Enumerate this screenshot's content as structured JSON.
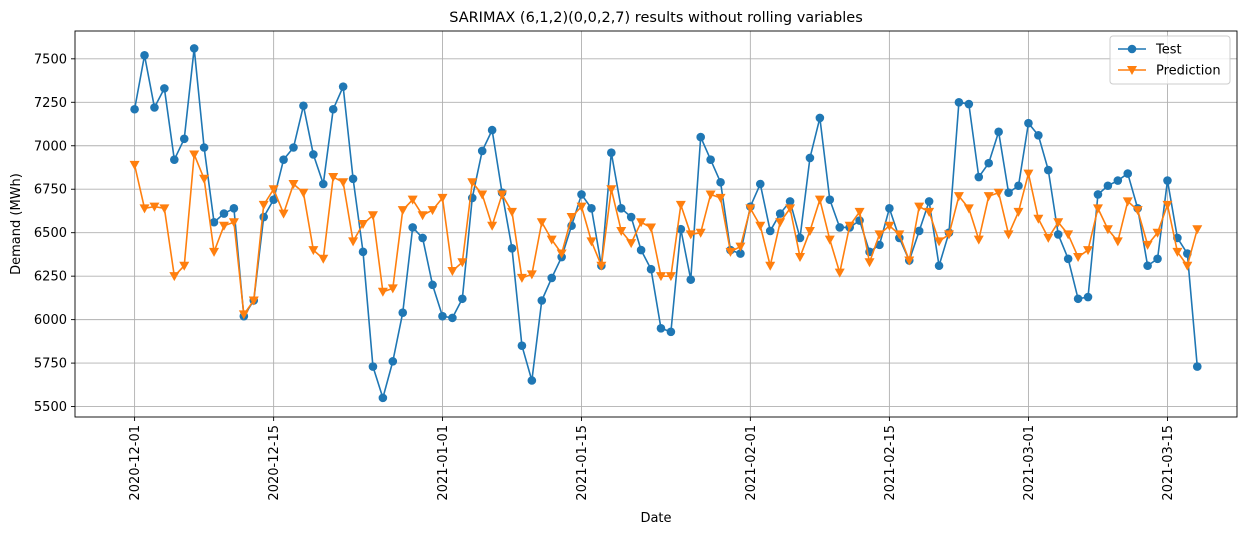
{
  "chart_data": {
    "type": "line",
    "title": "SARIMAX (6,1,2)(0,0,2,7) results without rolling variables",
    "xlabel": "Date",
    "ylabel": "Demand (MWh)",
    "ylim": [
      5440,
      7660
    ],
    "xlim": [
      "2020-11-25",
      "2021-03-22"
    ],
    "grid": true,
    "legend_position": "upper right",
    "x_start": "2020-12-01",
    "x_step_days": 1,
    "x_ticks": [
      "2020-12-01",
      "2020-12-15",
      "2021-01-01",
      "2021-01-15",
      "2021-02-01",
      "2021-02-15",
      "2021-03-01",
      "2021-03-15"
    ],
    "y_ticks": [
      5500,
      5750,
      6000,
      6250,
      6500,
      6750,
      7000,
      7250,
      7500
    ],
    "series": [
      {
        "name": "Test",
        "color": "#1f77b4",
        "marker": "circle",
        "values": [
          7210,
          7520,
          7220,
          7330,
          6920,
          7040,
          7560,
          6990,
          6560,
          6610,
          6640,
          6020,
          6110,
          6590,
          6690,
          6920,
          6990,
          7230,
          6950,
          6780,
          7210,
          7340,
          6810,
          6390,
          5730,
          5550,
          5760,
          6040,
          6530,
          6470,
          6200,
          6020,
          6010,
          6120,
          6700,
          6970,
          7090,
          6730,
          6410,
          5850,
          5650,
          6110,
          6240,
          6360,
          6540,
          6720,
          6640,
          6310,
          6960,
          6640,
          6590,
          6400,
          6290,
          5950,
          5930,
          6520,
          6230,
          7050,
          6920,
          6790,
          6400,
          6380,
          6650,
          6780,
          6510,
          6610,
          6680,
          6470,
          6930,
          7160,
          6690,
          6530,
          6530,
          6570,
          6390,
          6430,
          6640,
          6470,
          6340,
          6510,
          6680,
          6310,
          6500,
          7250,
          7240,
          6820,
          6900,
          7080,
          6730,
          6770,
          7130,
          7060,
          6860,
          6490,
          6350,
          6120,
          6130,
          6720,
          6770,
          6800,
          6840,
          6640,
          6310,
          6350,
          6800,
          6470,
          6380,
          5730
        ]
      },
      {
        "name": "Prediction",
        "color": "#ff7f0e",
        "marker": "triangle-down",
        "values": [
          6890,
          6640,
          6650,
          6640,
          6250,
          6310,
          6950,
          6810,
          6390,
          6540,
          6560,
          6030,
          6110,
          6660,
          6750,
          6610,
          6780,
          6730,
          6400,
          6350,
          6820,
          6790,
          6450,
          6550,
          6600,
          6160,
          6180,
          6630,
          6690,
          6600,
          6630,
          6700,
          6280,
          6330,
          6790,
          6720,
          6540,
          6720,
          6620,
          6240,
          6260,
          6560,
          6460,
          6380,
          6590,
          6650,
          6450,
          6310,
          6750,
          6510,
          6440,
          6560,
          6530,
          6250,
          6250,
          6660,
          6490,
          6500,
          6720,
          6700,
          6390,
          6420,
          6640,
          6540,
          6310,
          6560,
          6640,
          6360,
          6510,
          6690,
          6460,
          6270,
          6540,
          6620,
          6330,
          6490,
          6540,
          6490,
          6340,
          6650,
          6620,
          6450,
          6490,
          6710,
          6640,
          6460,
          6710,
          6730,
          6490,
          6620,
          6840,
          6580,
          6470,
          6560,
          6490,
          6360,
          6400,
          6640,
          6520,
          6450,
          6680,
          6630,
          6430,
          6500,
          6660,
          6390,
          6310,
          6520
        ]
      }
    ]
  }
}
